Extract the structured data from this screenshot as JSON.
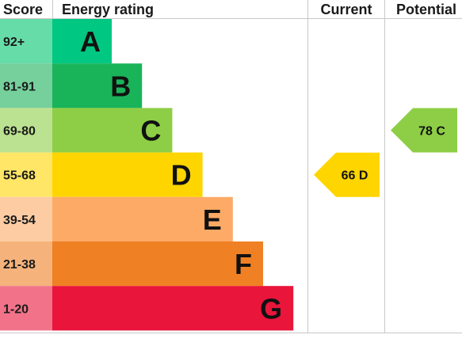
{
  "headers": {
    "score": "Score",
    "energy_rating": "Energy rating",
    "current": "Current",
    "potential": "Potential"
  },
  "chart_data": {
    "type": "bar",
    "title": "",
    "bands": [
      {
        "letter": "A",
        "range": "92+",
        "color": "#00c781",
        "score_bg": "#66dda9"
      },
      {
        "letter": "B",
        "range": "81-91",
        "color": "#19b459",
        "score_bg": "#75d09b"
      },
      {
        "letter": "C",
        "range": "69-80",
        "color": "#8dce46",
        "score_bg": "#bbe290"
      },
      {
        "letter": "D",
        "range": "55-68",
        "color": "#ffd500",
        "score_bg": "#ffe666"
      },
      {
        "letter": "E",
        "range": "39-54",
        "color": "#fcaa65",
        "score_bg": "#fdcca3"
      },
      {
        "letter": "F",
        "range": "21-38",
        "color": "#ef8023",
        "score_bg": "#f5b37b"
      },
      {
        "letter": "G",
        "range": "1-20",
        "color": "#e9153b",
        "score_bg": "#f27389"
      }
    ],
    "current": {
      "value": 66,
      "band": "D",
      "label": "66  D",
      "color": "#ffd500"
    },
    "potential": {
      "value": 78,
      "band": "C",
      "label": "78  C",
      "color": "#8dce46"
    }
  }
}
